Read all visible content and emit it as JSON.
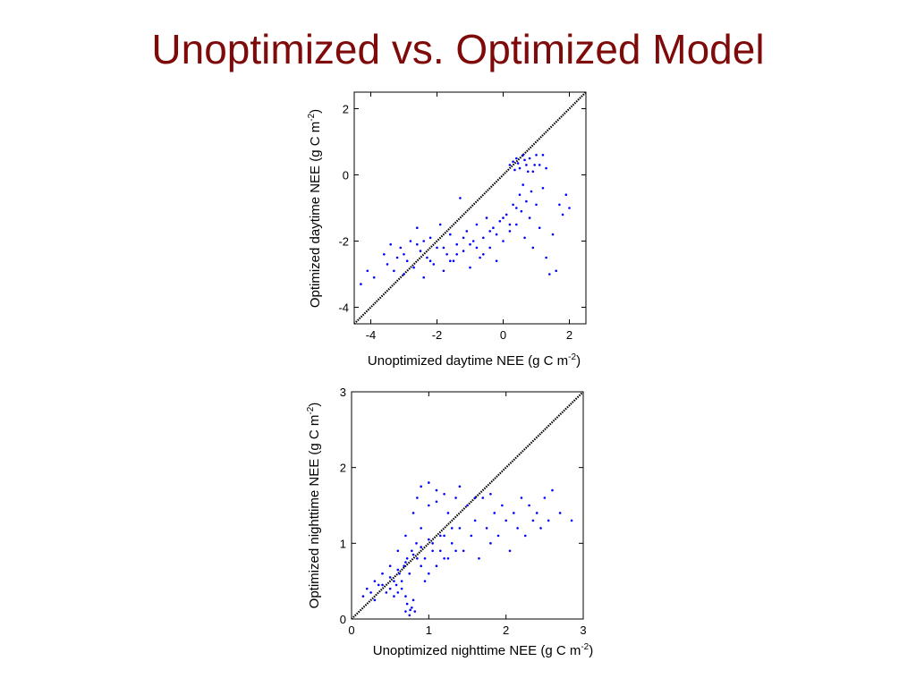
{
  "slide": {
    "title": "Unoptimized vs. Optimized Model"
  },
  "colors": {
    "title": "#7f0a0a",
    "points": "#0000ff",
    "identity_line": "#000000"
  },
  "chart_data": [
    {
      "type": "scatter",
      "title": "",
      "xlabel": "Unoptimized daytime NEE (g C m-2)",
      "xlabel_parts": {
        "main": "Unoptimized daytime NEE (g C m",
        "sup": "-2",
        "end": ")"
      },
      "ylabel": "Optimized daytime NEE (g C m-2)",
      "ylabel_parts": {
        "main": "Optimized daytime NEE (g C m",
        "sup": "-2",
        "end": ")"
      },
      "xlim": [
        -4.5,
        2.5
      ],
      "ylim": [
        -4.5,
        2.5
      ],
      "xticks": [
        -4,
        -2,
        0,
        2
      ],
      "yticks": [
        -4,
        -2,
        0,
        2
      ],
      "grid": false,
      "identity_line": true,
      "series": [
        {
          "color": "#0000ff",
          "points": [
            [
              -4.3,
              -3.3
            ],
            [
              -4.1,
              -2.9
            ],
            [
              -3.9,
              -3.1
            ],
            [
              -3.6,
              -2.4
            ],
            [
              -3.5,
              -2.7
            ],
            [
              -3.4,
              -2.1
            ],
            [
              -3.3,
              -2.9
            ],
            [
              -3.2,
              -2.5
            ],
            [
              -3.1,
              -2.2
            ],
            [
              -3.0,
              -3.0
            ],
            [
              -2.9,
              -2.6
            ],
            [
              -2.8,
              -2.0
            ],
            [
              -2.7,
              -2.8
            ],
            [
              -2.6,
              -1.6
            ],
            [
              -2.5,
              -2.3
            ],
            [
              -2.4,
              -3.1
            ],
            [
              -2.3,
              -2.5
            ],
            [
              -2.2,
              -1.9
            ],
            [
              -2.1,
              -2.7
            ],
            [
              -2.0,
              -2.2
            ],
            [
              -1.9,
              -1.5
            ],
            [
              -1.8,
              -2.9
            ],
            [
              -1.7,
              -2.4
            ],
            [
              -1.6,
              -1.8
            ],
            [
              -1.5,
              -2.6
            ],
            [
              -1.4,
              -2.1
            ],
            [
              -1.3,
              -0.7
            ],
            [
              -1.2,
              -2.3
            ],
            [
              -1.1,
              -1.7
            ],
            [
              -1.0,
              -2.8
            ],
            [
              -0.9,
              -2.0
            ],
            [
              -0.8,
              -1.5
            ],
            [
              -0.7,
              -2.5
            ],
            [
              -0.6,
              -1.9
            ],
            [
              -0.5,
              -1.3
            ],
            [
              -0.4,
              -2.2
            ],
            [
              -0.3,
              -1.6
            ],
            [
              -0.2,
              -2.6
            ],
            [
              -0.1,
              -1.4
            ],
            [
              0.0,
              -2.0
            ],
            [
              0.1,
              -1.2
            ],
            [
              0.2,
              -1.7
            ],
            [
              0.3,
              -0.9
            ],
            [
              0.4,
              -1.5
            ],
            [
              0.5,
              -0.6
            ],
            [
              0.55,
              -1.1
            ],
            [
              0.6,
              -0.3
            ],
            [
              0.65,
              -1.9
            ],
            [
              0.7,
              -0.8
            ],
            [
              0.75,
              0.1
            ],
            [
              0.8,
              -1.3
            ],
            [
              0.85,
              -0.5
            ],
            [
              0.9,
              -2.2
            ],
            [
              0.95,
              0.3
            ],
            [
              1.0,
              -0.9
            ],
            [
              1.1,
              -1.6
            ],
            [
              1.2,
              -0.4
            ],
            [
              1.3,
              -2.5
            ],
            [
              1.4,
              -3.0
            ],
            [
              1.5,
              -1.8
            ],
            [
              1.6,
              -2.9
            ],
            [
              1.7,
              -0.9
            ],
            [
              1.8,
              -1.2
            ],
            [
              1.9,
              -0.6
            ],
            [
              2.0,
              -1.0
            ],
            [
              0.2,
              0.3
            ],
            [
              0.3,
              0.4
            ],
            [
              0.4,
              0.5
            ],
            [
              0.5,
              0.2
            ],
            [
              0.6,
              0.6
            ],
            [
              0.7,
              0.3
            ],
            [
              0.8,
              0.5
            ],
            [
              0.9,
              0.1
            ],
            [
              1.0,
              0.6
            ],
            [
              1.1,
              0.3
            ],
            [
              1.2,
              0.6
            ],
            [
              1.3,
              0.2
            ],
            [
              0.35,
              0.15
            ],
            [
              0.45,
              0.35
            ],
            [
              0.65,
              0.45
            ],
            [
              -2.6,
              -2.1
            ],
            [
              -2.2,
              -2.6
            ],
            [
              -1.8,
              -2.2
            ],
            [
              -1.4,
              -2.4
            ],
            [
              -1.0,
              -2.1
            ],
            [
              -0.6,
              -2.4
            ],
            [
              -0.2,
              -1.8
            ],
            [
              0.2,
              -1.5
            ],
            [
              -3.0,
              -2.4
            ],
            [
              -2.4,
              -2.0
            ],
            [
              -1.6,
              -2.6
            ],
            [
              -1.2,
              -1.9
            ],
            [
              -0.8,
              -2.2
            ],
            [
              -0.4,
              -1.7
            ],
            [
              0.0,
              -1.3
            ],
            [
              0.4,
              -1.0
            ]
          ]
        }
      ]
    },
    {
      "type": "scatter",
      "title": "",
      "xlabel": "Unoptimized nighttime NEE (g C m-2)",
      "xlabel_parts": {
        "main": "Unoptimized nighttime NEE (g C m",
        "sup": "-2",
        "end": ")"
      },
      "ylabel": "Optimized nighttime NEE (g C m-2)",
      "ylabel_parts": {
        "main": "Optimized nighttime NEE (g C m",
        "sup": "-2",
        "end": ")"
      },
      "xlim": [
        0,
        3
      ],
      "ylim": [
        0,
        3
      ],
      "xticks": [
        0,
        1,
        2,
        3
      ],
      "yticks": [
        0,
        1,
        2,
        3
      ],
      "grid": false,
      "identity_line": true,
      "series": [
        {
          "color": "#0000ff",
          "points": [
            [
              0.15,
              0.3
            ],
            [
              0.2,
              0.4
            ],
            [
              0.25,
              0.35
            ],
            [
              0.3,
              0.5
            ],
            [
              0.35,
              0.45
            ],
            [
              0.4,
              0.6
            ],
            [
              0.45,
              0.35
            ],
            [
              0.5,
              0.7
            ],
            [
              0.55,
              0.5
            ],
            [
              0.6,
              0.9
            ],
            [
              0.65,
              0.4
            ],
            [
              0.7,
              1.1
            ],
            [
              0.75,
              0.6
            ],
            [
              0.8,
              1.4
            ],
            [
              0.85,
              0.8
            ],
            [
              0.9,
              1.2
            ],
            [
              0.95,
              0.5
            ],
            [
              1.0,
              1.5
            ],
            [
              1.05,
              0.9
            ],
            [
              1.1,
              1.7
            ],
            [
              1.15,
              1.1
            ],
            [
              1.2,
              0.8
            ],
            [
              1.25,
              1.4
            ],
            [
              1.3,
              1.0
            ],
            [
              1.35,
              1.6
            ],
            [
              1.4,
              1.2
            ],
            [
              1.45,
              0.9
            ],
            [
              1.5,
              1.5
            ],
            [
              1.55,
              1.1
            ],
            [
              1.6,
              1.3
            ],
            [
              1.65,
              0.8
            ],
            [
              1.7,
              1.6
            ],
            [
              1.75,
              1.2
            ],
            [
              1.8,
              1.0
            ],
            [
              1.85,
              1.4
            ],
            [
              1.9,
              1.1
            ],
            [
              1.95,
              1.5
            ],
            [
              2.0,
              1.3
            ],
            [
              2.05,
              0.9
            ],
            [
              2.1,
              1.4
            ],
            [
              2.15,
              1.2
            ],
            [
              2.2,
              1.6
            ],
            [
              2.25,
              1.1
            ],
            [
              2.3,
              1.5
            ],
            [
              2.35,
              1.3
            ],
            [
              2.4,
              1.4
            ],
            [
              2.45,
              1.2
            ],
            [
              2.5,
              1.6
            ],
            [
              2.55,
              1.3
            ],
            [
              2.6,
              1.7
            ],
            [
              2.7,
              1.4
            ],
            [
              2.85,
              1.3
            ],
            [
              0.7,
              0.1
            ],
            [
              0.72,
              0.2
            ],
            [
              0.75,
              0.05
            ],
            [
              0.78,
              0.15
            ],
            [
              0.8,
              0.25
            ],
            [
              0.7,
              0.3
            ],
            [
              0.82,
              0.1
            ],
            [
              0.76,
              0.12
            ],
            [
              0.5,
              0.4
            ],
            [
              0.55,
              0.3
            ],
            [
              0.6,
              0.35
            ],
            [
              0.65,
              0.5
            ],
            [
              0.58,
              0.45
            ],
            [
              0.62,
              0.6
            ],
            [
              0.68,
              0.7
            ],
            [
              0.72,
              0.8
            ],
            [
              0.78,
              0.9
            ],
            [
              0.84,
              1.0
            ],
            [
              0.9,
              0.7
            ],
            [
              0.95,
              0.8
            ],
            [
              1.0,
              0.6
            ],
            [
              1.05,
              1.0
            ],
            [
              1.1,
              0.7
            ],
            [
              1.15,
              0.9
            ],
            [
              1.2,
              1.1
            ],
            [
              1.25,
              0.8
            ],
            [
              1.3,
              1.2
            ],
            [
              1.35,
              0.9
            ],
            [
              0.85,
              1.6
            ],
            [
              0.9,
              1.75
            ],
            [
              1.0,
              1.8
            ],
            [
              1.1,
              1.55
            ],
            [
              1.2,
              1.65
            ],
            [
              1.4,
              1.75
            ],
            [
              1.6,
              1.6
            ],
            [
              1.8,
              1.65
            ],
            [
              0.3,
              0.25
            ],
            [
              0.4,
              0.45
            ],
            [
              0.5,
              0.55
            ],
            [
              0.6,
              0.65
            ],
            [
              0.7,
              0.75
            ],
            [
              0.8,
              0.85
            ],
            [
              0.9,
              0.95
            ],
            [
              1.0,
              1.05
            ]
          ]
        }
      ]
    }
  ]
}
